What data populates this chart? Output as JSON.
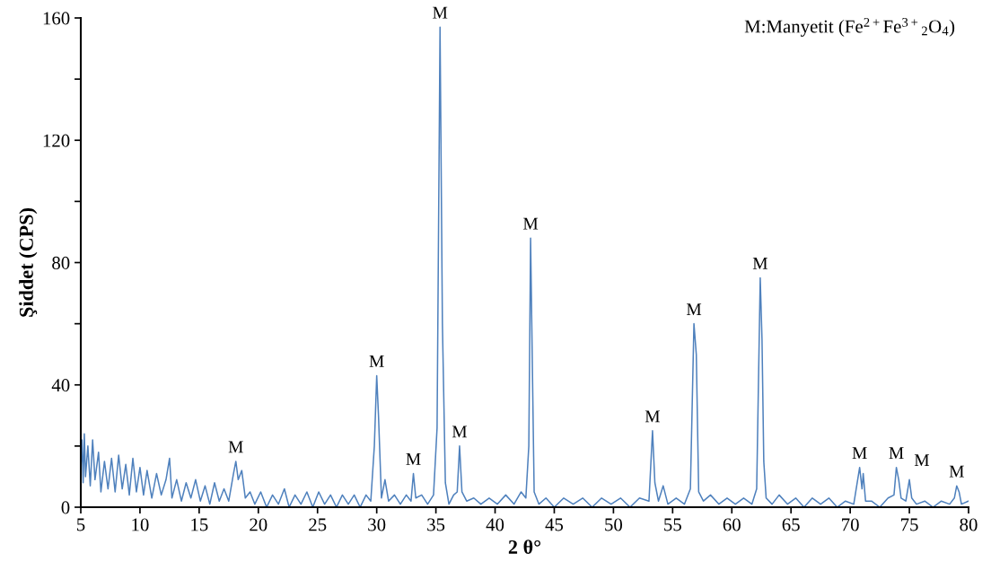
{
  "chart_data": {
    "type": "line",
    "xlabel": "2 θ°",
    "ylabel": "Şiddet (CPS)",
    "xlim": [
      5,
      80
    ],
    "xticks": [
      5,
      10,
      15,
      20,
      25,
      30,
      35,
      40,
      45,
      50,
      55,
      60,
      65,
      70,
      75,
      80
    ],
    "ylim": [
      0,
      160
    ],
    "yticks": [
      0,
      {
        "value": 20,
        "label": null
      },
      40,
      {
        "value": 60,
        "label": null
      },
      80,
      {
        "value": 100,
        "label": null
      },
      120,
      {
        "value": 140,
        "label": null
      },
      160
    ],
    "grid": false,
    "marker": "none",
    "line_style": "solid",
    "series": [
      {
        "color": "#4f81bd",
        "x": [
          5.0,
          5.1,
          5.2,
          5.3,
          5.4,
          5.6,
          5.8,
          6.0,
          6.2,
          6.5,
          6.7,
          7.0,
          7.3,
          7.6,
          7.9,
          8.2,
          8.5,
          8.8,
          9.1,
          9.4,
          9.7,
          10.0,
          10.3,
          10.6,
          11.0,
          11.4,
          11.8,
          12.2,
          12.5,
          12.7,
          13.1,
          13.5,
          13.9,
          14.3,
          14.7,
          15.1,
          15.5,
          15.9,
          16.3,
          16.7,
          17.1,
          17.5,
          17.9,
          18.1,
          18.3,
          18.6,
          18.9,
          19.3,
          19.7,
          20.2,
          20.7,
          21.2,
          21.7,
          22.2,
          22.6,
          23.1,
          23.6,
          24.1,
          24.6,
          25.1,
          25.6,
          26.1,
          26.6,
          27.1,
          27.6,
          28.1,
          28.6,
          29.1,
          29.5,
          29.8,
          30.0,
          30.15,
          30.4,
          30.7,
          31.0,
          31.5,
          32.0,
          32.5,
          32.9,
          33.1,
          33.3,
          33.8,
          34.3,
          34.8,
          35.1,
          35.35,
          35.55,
          35.8,
          36.1,
          36.5,
          36.8,
          37.0,
          37.2,
          37.6,
          38.2,
          38.8,
          39.5,
          40.2,
          40.9,
          41.6,
          42.2,
          42.6,
          42.85,
          43.0,
          43.1,
          43.3,
          43.7,
          44.3,
          45.0,
          45.8,
          46.6,
          47.4,
          48.2,
          49.0,
          49.8,
          50.6,
          51.4,
          52.2,
          53.0,
          53.3,
          53.5,
          53.8,
          54.2,
          54.6,
          55.3,
          56.0,
          56.5,
          56.8,
          57.0,
          57.2,
          57.6,
          58.2,
          58.9,
          59.6,
          60.3,
          61.0,
          61.7,
          62.1,
          62.4,
          62.55,
          62.7,
          62.9,
          63.4,
          64.0,
          64.7,
          65.4,
          66.1,
          66.8,
          67.5,
          68.2,
          68.9,
          69.6,
          70.3,
          70.8,
          71.0,
          71.1,
          71.3,
          71.8,
          72.5,
          73.2,
          73.7,
          73.9,
          74.1,
          74.3,
          74.7,
          75.0,
          75.2,
          75.6,
          76.3,
          77.0,
          77.7,
          78.4,
          78.8,
          79.0,
          79.2,
          79.4,
          80.0
        ],
        "values": [
          12,
          22,
          8,
          24,
          10,
          20,
          7,
          22,
          9,
          18,
          5,
          15,
          6,
          16,
          5,
          17,
          6,
          14,
          4,
          16,
          5,
          13,
          4,
          12,
          3,
          11,
          4,
          9,
          16,
          3,
          9,
          2,
          8,
          3,
          9,
          2,
          7,
          1,
          8,
          2,
          6,
          2,
          11,
          15,
          9,
          12,
          3,
          5,
          1,
          5,
          0,
          4,
          1,
          6,
          0,
          4,
          1,
          5,
          0,
          5,
          1,
          4,
          0,
          4,
          1,
          4,
          0,
          4,
          2,
          20,
          43,
          30,
          3,
          9,
          2,
          4,
          1,
          4,
          2,
          11,
          3,
          4,
          1,
          4,
          26,
          157,
          60,
          8,
          1,
          4,
          5,
          20,
          5,
          2,
          3,
          1,
          3,
          1,
          4,
          1,
          5,
          3,
          20,
          88,
          60,
          5,
          1,
          3,
          0,
          3,
          1,
          3,
          0,
          3,
          1,
          3,
          0,
          3,
          2,
          25,
          8,
          2,
          7,
          1,
          3,
          1,
          6,
          60,
          50,
          5,
          2,
          4,
          1,
          3,
          1,
          3,
          1,
          6,
          75,
          55,
          15,
          3,
          1,
          4,
          1,
          3,
          0,
          3,
          1,
          3,
          0,
          2,
          1,
          13,
          6,
          11,
          2,
          2,
          0,
          3,
          4,
          13,
          9,
          3,
          2,
          9,
          3,
          1,
          2,
          0,
          2,
          1,
          3,
          7,
          5,
          1,
          2
        ]
      }
    ],
    "annotations": [
      "M:Manyetit (Fe$^{2+}$Fe$^{3+}$$_{2}$O$_{4}$)",
      {
        "text": "M",
        "x": 18.1,
        "y": 15
      },
      {
        "text": "M",
        "x": 30.0,
        "y": 43
      },
      {
        "text": "M",
        "x": 33.1,
        "y": 11
      },
      {
        "text": "M",
        "x": 35.35,
        "y": 157
      },
      {
        "text": "M",
        "x": 37.0,
        "y": 20
      },
      {
        "text": "M",
        "x": 43.0,
        "y": 88
      },
      {
        "text": "M",
        "x": 53.3,
        "y": 25
      },
      {
        "text": "M",
        "x": 56.8,
        "y": 60
      },
      {
        "text": "M",
        "x": 62.4,
        "y": 75
      },
      {
        "text": "M",
        "x": 70.8,
        "y": 13
      },
      {
        "text": "M",
        "x": 73.9,
        "y": 13
      },
      {
        "text": "M",
        "x": 75.0,
        "y": 9
      },
      {
        "text": "M",
        "x": 79.0,
        "y": 7
      }
    ]
  }
}
